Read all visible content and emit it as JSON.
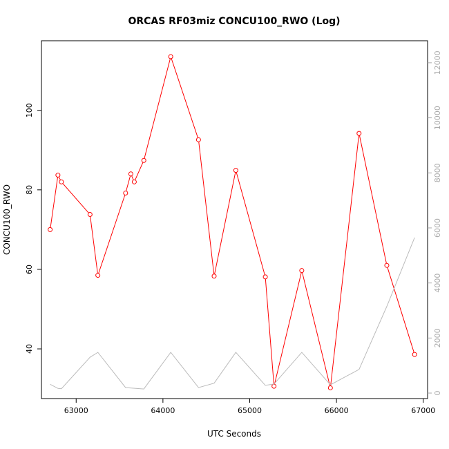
{
  "chart_data": {
    "type": "line",
    "title": "ORCAS RF03miz CONCU100_RWO (Log)",
    "xlabel": "UTC Seconds",
    "ylabel": "CONCU100_RWO",
    "xlim": [
      62600,
      67050
    ],
    "ylim": [
      27.5,
      117.5
    ],
    "y2lim": [
      -200,
      12800
    ],
    "x_ticks": [
      63000,
      64000,
      65000,
      66000,
      67000
    ],
    "y_ticks": [
      40,
      60,
      80,
      100
    ],
    "y2_ticks": [
      0,
      2000,
      4000,
      6000,
      8000,
      10000,
      12000
    ],
    "grid": false,
    "series": [
      {
        "color": "#ff0000",
        "axis": "left",
        "marker": "circle",
        "x": [
          62700,
          62790,
          62830,
          63160,
          63250,
          63570,
          63630,
          63670,
          63780,
          64090,
          64410,
          64590,
          64840,
          65180,
          65280,
          65600,
          65930,
          66260,
          66580,
          66900
        ],
        "y": [
          70.0,
          83.7,
          82.0,
          73.8,
          58.5,
          79.2,
          84.0,
          82.0,
          87.4,
          113.5,
          92.6,
          58.3,
          84.9,
          58.1,
          30.6,
          59.7,
          30.2,
          94.2,
          61.0,
          38.6
        ]
      },
      {
        "color": "#bbbbbb",
        "axis": "right",
        "marker": "none",
        "x": [
          62700,
          62790,
          62830,
          63160,
          63250,
          63570,
          63780,
          64090,
          64410,
          64590,
          64840,
          65180,
          65280,
          65600,
          65930,
          66260,
          66580,
          66900
        ],
        "y": [
          320,
          170,
          160,
          1300,
          1480,
          200,
          150,
          1480,
          200,
          360,
          1480,
          280,
          330,
          1480,
          300,
          860,
          3150,
          5650
        ]
      }
    ]
  }
}
